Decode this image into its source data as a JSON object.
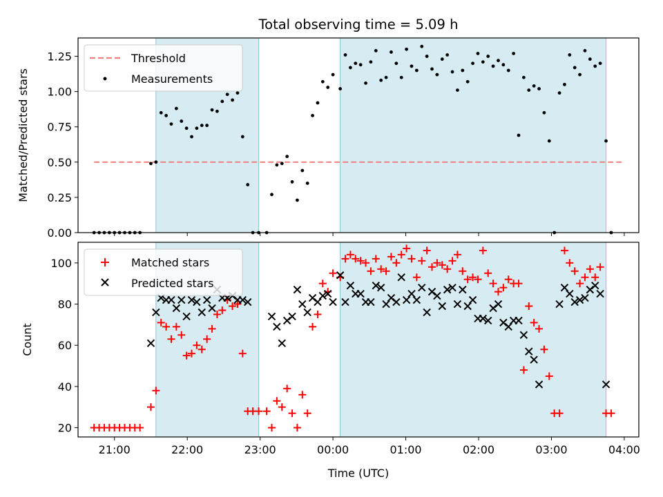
{
  "chart_data": [
    {
      "type": "scatter",
      "title": "Total observing time = 5.09 h",
      "ylabel": "Matched/Predicted stars",
      "xlim": [
        20.5,
        28.2
      ],
      "ylim": [
        0,
        1.38
      ],
      "yticks": [
        "0.00",
        "0.25",
        "0.50",
        "0.75",
        "1.00",
        "1.25"
      ],
      "grid": false,
      "legend": {
        "position": "top-left",
        "entries": [
          "Threshold",
          "Measurements"
        ]
      },
      "threshold": {
        "name": "Threshold",
        "value": 0.5,
        "x_range": [
          20.72,
          28.0
        ],
        "color": "#f08080"
      },
      "observing_windows": [
        [
          21.57,
          22.98
        ],
        [
          24.1,
          27.75
        ]
      ],
      "series": [
        {
          "name": "Measurements",
          "color": "#000000",
          "x": [
            20.72,
            20.79,
            20.86,
            20.93,
            21.0,
            21.07,
            21.14,
            21.21,
            21.28,
            21.35,
            21.5,
            21.57,
            21.64,
            21.71,
            21.78,
            21.85,
            21.92,
            21.99,
            22.06,
            22.13,
            22.2,
            22.27,
            22.34,
            22.41,
            22.48,
            22.55,
            22.62,
            22.69,
            22.76,
            22.83,
            22.9,
            22.98,
            23.09,
            23.16,
            23.23,
            23.3,
            23.37,
            23.44,
            23.51,
            23.58,
            23.65,
            23.72,
            23.79,
            23.86,
            23.93,
            24.0,
            24.1,
            24.17,
            24.24,
            24.31,
            24.38,
            24.45,
            24.52,
            24.59,
            24.66,
            24.73,
            24.8,
            24.87,
            24.94,
            25.01,
            25.08,
            25.15,
            25.22,
            25.29,
            25.36,
            25.43,
            25.5,
            25.57,
            25.64,
            25.71,
            25.78,
            25.85,
            25.92,
            25.99,
            26.06,
            26.13,
            26.2,
            26.27,
            26.34,
            26.41,
            26.48,
            26.55,
            26.62,
            26.69,
            26.76,
            26.83,
            26.9,
            26.97,
            27.04,
            27.11,
            27.18,
            27.25,
            27.32,
            27.39,
            27.46,
            27.53,
            27.6,
            27.67,
            27.75,
            27.82
          ],
          "y": [
            0,
            0,
            0,
            0,
            0,
            0,
            0,
            0,
            0,
            0,
            0.49,
            0.5,
            0.85,
            0.83,
            0.77,
            0.88,
            0.79,
            0.74,
            0.68,
            0.74,
            0.76,
            0.76,
            0.87,
            0.86,
            0.93,
            0.98,
            0.94,
            0.99,
            0.68,
            0.34,
            0,
            0,
            0,
            0.27,
            0.48,
            0.49,
            0.54,
            0.36,
            0.23,
            0.44,
            0.35,
            0.83,
            0.92,
            1.07,
            1.03,
            1.12,
            1.02,
            1.26,
            1.17,
            1.2,
            1.19,
            1.06,
            1.21,
            1.29,
            1.08,
            1.1,
            1.28,
            1.2,
            1.1,
            1.3,
            1.18,
            1.15,
            1.32,
            1.25,
            1.16,
            1.12,
            1.23,
            1.26,
            1.14,
            1.01,
            1.15,
            1.07,
            1.2,
            1.27,
            1.21,
            1.25,
            1.18,
            1.22,
            1.19,
            1.15,
            1.27,
            0.69,
            1.1,
            1.01,
            1.04,
            1.02,
            0.85,
            0.65,
            0,
            0.99,
            1.05,
            1.26,
            1.17,
            1.12,
            1.29,
            1.23,
            1.18,
            1.2,
            0.65,
            0
          ]
        }
      ]
    },
    {
      "type": "scatter",
      "xlabel": "Time (UTC)",
      "ylabel": "Count",
      "xlim": [
        20.5,
        28.2
      ],
      "ylim": [
        15.5,
        110
      ],
      "xticks": [
        {
          "value": 21,
          "label": "21:00"
        },
        {
          "value": 22,
          "label": "22:00"
        },
        {
          "value": 23,
          "label": "23:00"
        },
        {
          "value": 24,
          "label": "00:00"
        },
        {
          "value": 25,
          "label": "01:00"
        },
        {
          "value": 26,
          "label": "02:00"
        },
        {
          "value": 27,
          "label": "03:00"
        },
        {
          "value": 28,
          "label": "04:00"
        }
      ],
      "yticks": [
        20,
        40,
        60,
        80,
        100
      ],
      "grid": false,
      "legend": {
        "position": "top-left",
        "entries": [
          "Matched stars",
          "Predicted stars"
        ]
      },
      "observing_windows": [
        [
          21.57,
          22.98
        ],
        [
          24.1,
          27.75
        ]
      ],
      "series": [
        {
          "name": "Matched stars",
          "marker": "plus",
          "color": "#ff0000",
          "x": [
            20.72,
            20.79,
            20.86,
            20.93,
            21.0,
            21.07,
            21.14,
            21.21,
            21.28,
            21.35,
            21.5,
            21.57,
            21.64,
            21.71,
            21.78,
            21.85,
            21.92,
            21.99,
            22.06,
            22.13,
            22.2,
            22.27,
            22.34,
            22.41,
            22.48,
            22.55,
            22.62,
            22.69,
            22.76,
            22.83,
            22.9,
            22.98,
            23.09,
            23.16,
            23.23,
            23.3,
            23.37,
            23.44,
            23.51,
            23.58,
            23.65,
            23.72,
            23.79,
            23.86,
            23.93,
            24.0,
            24.1,
            24.17,
            24.24,
            24.31,
            24.38,
            24.45,
            24.52,
            24.59,
            24.66,
            24.73,
            24.8,
            24.87,
            24.94,
            25.01,
            25.08,
            25.15,
            25.22,
            25.29,
            25.36,
            25.43,
            25.5,
            25.57,
            25.64,
            25.71,
            25.78,
            25.85,
            25.92,
            25.99,
            26.06,
            26.13,
            26.2,
            26.27,
            26.34,
            26.41,
            26.48,
            26.55,
            26.62,
            26.69,
            26.76,
            26.83,
            26.9,
            26.97,
            27.04,
            27.11,
            27.18,
            27.25,
            27.32,
            27.39,
            27.46,
            27.53,
            27.6,
            27.67,
            27.75,
            27.82
          ],
          "y": [
            20,
            20,
            20,
            20,
            20,
            20,
            20,
            20,
            20,
            20,
            30,
            38,
            71,
            69,
            63,
            69,
            65,
            55,
            56,
            60,
            58,
            63,
            68,
            75,
            77,
            82,
            79,
            80,
            56,
            28,
            28,
            28,
            28,
            20,
            33,
            30,
            39,
            27,
            20,
            36,
            27,
            69,
            75,
            90,
            86,
            95,
            93,
            102,
            104,
            102,
            101,
            100,
            96,
            102,
            97,
            96,
            103,
            100,
            104,
            107,
            102,
            93,
            101,
            106,
            98,
            100,
            99,
            97,
            101,
            104,
            96,
            92,
            93,
            92,
            106,
            95,
            90,
            86,
            88,
            92,
            90,
            90,
            48,
            79,
            71,
            68,
            58,
            45,
            27,
            27,
            106,
            100,
            96,
            90,
            93,
            97,
            93,
            98,
            27,
            27
          ]
        },
        {
          "name": "Predicted stars",
          "marker": "x",
          "color": "#000000",
          "x": [
            20.72,
            20.79,
            20.86,
            20.93,
            21.0,
            21.07,
            21.14,
            21.21,
            21.28,
            21.35,
            21.5,
            21.57,
            21.64,
            21.71,
            21.78,
            21.85,
            21.92,
            21.99,
            22.06,
            22.13,
            22.2,
            22.27,
            22.34,
            22.41,
            22.48,
            22.55,
            22.62,
            22.69,
            22.76,
            22.83,
            22.9,
            22.98,
            23.09,
            23.16,
            23.23,
            23.3,
            23.37,
            23.44,
            23.51,
            23.58,
            23.65,
            23.72,
            23.79,
            23.86,
            23.93,
            24.0,
            24.1,
            24.17,
            24.24,
            24.31,
            24.38,
            24.45,
            24.52,
            24.59,
            24.66,
            24.73,
            24.8,
            24.87,
            24.94,
            25.01,
            25.08,
            25.15,
            25.22,
            25.29,
            25.36,
            25.43,
            25.5,
            25.57,
            25.64,
            25.71,
            25.78,
            25.85,
            25.92,
            25.99,
            26.06,
            26.13,
            26.2,
            26.27,
            26.34,
            26.41,
            26.48,
            26.55,
            26.62,
            26.69,
            26.76,
            26.83,
            26.9,
            26.97,
            27.04,
            27.11,
            27.18,
            27.25,
            27.32,
            27.39,
            27.46,
            27.53,
            27.6,
            27.67,
            27.75,
            27.82
          ],
          "y": [
            null,
            null,
            null,
            null,
            null,
            null,
            null,
            null,
            null,
            null,
            61,
            76,
            83,
            82,
            82,
            78,
            82,
            74,
            82,
            81,
            76,
            82,
            78,
            87,
            83,
            83,
            84,
            82,
            82,
            81,
            null,
            null,
            null,
            74,
            69,
            61,
            72,
            74,
            87,
            80,
            76,
            83,
            81,
            84,
            85,
            81,
            94,
            81,
            89,
            85,
            85,
            81,
            81,
            89,
            88,
            80,
            83,
            81,
            93,
            82,
            85,
            82,
            88,
            76,
            86,
            84,
            79,
            87,
            88,
            80,
            87,
            79,
            82,
            73,
            73,
            72,
            78,
            80,
            71,
            69,
            72,
            72,
            65,
            57,
            53,
            41,
            null,
            null,
            null,
            80,
            88,
            85,
            81,
            82,
            83,
            87,
            89,
            85,
            41,
            null
          ]
        }
      ]
    }
  ]
}
